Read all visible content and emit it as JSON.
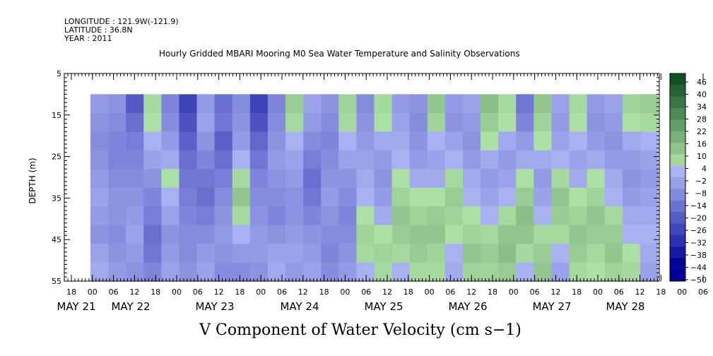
{
  "header": {
    "longitude": "LONGITUDE : 121.9W(-121.9)",
    "latitude": "LATITUDE : 36.8N",
    "year": "YEAR : 2011"
  },
  "chart_data": {
    "type": "heatmap",
    "title": "Hourly Gridded MBARI Mooring M0 Sea Water Temperature and Salinity Observations",
    "xlabel": "V Component of Water Velocity (cm s−1)",
    "ylabel": "DEPTH (m)",
    "y_ticks": [
      "5",
      "15",
      "25",
      "35",
      "45",
      "55"
    ],
    "ylim": [
      5,
      55
    ],
    "y_inverted": true,
    "data_depth_range": [
      10,
      55
    ],
    "x_hour_ticks": [
      "18",
      "00",
      "06",
      "12",
      "18",
      "00",
      "06",
      "12",
      "18",
      "00",
      "06",
      "12",
      "18",
      "00",
      "06",
      "12",
      "18",
      "00",
      "06",
      "12",
      "18",
      "00",
      "06",
      "12",
      "18",
      "00",
      "06",
      "12",
      "18",
      "00",
      "06",
      "12"
    ],
    "x_day_labels": [
      "MAY 21",
      "MAY 22",
      "MAY 23",
      "MAY 24",
      "MAY 25",
      "MAY 26",
      "MAY 27",
      "MAY 28"
    ],
    "colorbar": {
      "min": -50,
      "max": 50,
      "step": 6,
      "labels": [
        "46",
        "40",
        "34",
        "28",
        "22",
        "16",
        "10",
        "4",
        "−2",
        "−8",
        "−14",
        "−20",
        "−26",
        "−32",
        "−38",
        "−44",
        "−50"
      ]
    },
    "columns": [
      {
        "day": "May 21 00h",
        "v": [
          -8,
          -10,
          -12,
          -10,
          -8,
          -6,
          -8,
          -10,
          -6,
          -4
        ]
      },
      {
        "day": "May 21 06h",
        "v": [
          -10,
          -12,
          -14,
          -14,
          -12,
          -10,
          -10,
          -12,
          -10,
          -8
        ]
      },
      {
        "day": "May 21 12h",
        "v": [
          -26,
          -20,
          -16,
          -14,
          -12,
          -10,
          -8,
          -6,
          -8,
          -10
        ]
      },
      {
        "day": "May 21 18h",
        "v": [
          4,
          2,
          -2,
          -6,
          -10,
          -14,
          -16,
          -20,
          -18,
          -14
        ]
      },
      {
        "day": "May 22 00h",
        "v": [
          -14,
          -12,
          -8,
          -4,
          2,
          -2,
          -6,
          -10,
          -8,
          -6
        ]
      },
      {
        "day": "May 22 06h",
        "v": [
          -32,
          -28,
          -24,
          -20,
          -18,
          -16,
          -14,
          -12,
          -12,
          -10
        ]
      },
      {
        "day": "May 22 12h",
        "v": [
          -8,
          -6,
          -10,
          -14,
          -18,
          -20,
          -16,
          -12,
          -8,
          -6
        ]
      },
      {
        "day": "May 22 18h",
        "v": [
          -20,
          -18,
          -24,
          -20,
          -16,
          -12,
          -10,
          -8,
          -10,
          -12
        ]
      },
      {
        "day": "May 23 00h",
        "v": [
          -12,
          -10,
          -8,
          -2,
          4,
          10,
          4,
          -2,
          -8,
          -12
        ]
      },
      {
        "day": "May 23 06h",
        "v": [
          -32,
          -28,
          -22,
          -18,
          -14,
          -12,
          -10,
          -8,
          -8,
          -10
        ]
      },
      {
        "day": "May 23 12h",
        "v": [
          -14,
          -12,
          -10,
          -8,
          -10,
          -12,
          -14,
          -10,
          -6,
          -4
        ]
      },
      {
        "day": "May 23 18h",
        "v": [
          8,
          4,
          -2,
          -6,
          -8,
          -10,
          -10,
          -8,
          -6,
          -8
        ]
      },
      {
        "day": "May 24 00h",
        "v": [
          -6,
          -8,
          -12,
          -16,
          -20,
          -18,
          -14,
          -10,
          -8,
          -6
        ]
      },
      {
        "day": "May 24 06h",
        "v": [
          -10,
          -12,
          -14,
          -12,
          -10,
          -8,
          -10,
          -12,
          -14,
          -12
        ]
      },
      {
        "day": "May 24 12h",
        "v": [
          6,
          4,
          -2,
          -6,
          -10,
          -12,
          -14,
          -12,
          -10,
          -8
        ]
      },
      {
        "day": "May 24 18h",
        "v": [
          -12,
          -10,
          -8,
          -6,
          -4,
          -2,
          2,
          6,
          4,
          -2
        ]
      },
      {
        "day": "May 25 00h",
        "v": [
          4,
          2,
          -4,
          -8,
          -10,
          -8,
          -4,
          2,
          6,
          4
        ]
      },
      {
        "day": "May 25 06h",
        "v": [
          -8,
          -6,
          -4,
          -2,
          2,
          6,
          10,
          8,
          4,
          -2
        ]
      },
      {
        "day": "May 25 12h",
        "v": [
          -10,
          -12,
          -10,
          -8,
          -4,
          2,
          6,
          10,
          8,
          4
        ]
      },
      {
        "day": "May 25 18h",
        "v": [
          10,
          6,
          -2,
          -6,
          -4,
          2,
          8,
          10,
          6,
          4
        ]
      },
      {
        "day": "May 26 00h",
        "v": [
          -8,
          -10,
          -6,
          -2,
          4,
          8,
          6,
          2,
          -2,
          -4
        ]
      },
      {
        "day": "May 26 06h",
        "v": [
          -6,
          -8,
          -10,
          -8,
          -4,
          -2,
          2,
          6,
          10,
          6
        ]
      },
      {
        "day": "May 26 12h",
        "v": [
          12,
          8,
          2,
          -4,
          -8,
          -6,
          -2,
          4,
          8,
          6
        ]
      },
      {
        "day": "May 26 18h",
        "v": [
          4,
          2,
          -4,
          -8,
          -6,
          -2,
          4,
          10,
          12,
          8
        ]
      },
      {
        "day": "May 27 00h",
        "v": [
          -18,
          -14,
          -8,
          -4,
          2,
          8,
          12,
          10,
          4,
          -2
        ]
      },
      {
        "day": "May 27 06h",
        "v": [
          10,
          6,
          2,
          -4,
          -8,
          -6,
          -2,
          4,
          8,
          10
        ]
      },
      {
        "day": "May 27 12h",
        "v": [
          -6,
          -8,
          -6,
          -2,
          4,
          10,
          8,
          4,
          -2,
          -6
        ]
      },
      {
        "day": "May 27 18h",
        "v": [
          4,
          2,
          -2,
          -6,
          -4,
          2,
          6,
          10,
          8,
          4
        ]
      },
      {
        "day": "May 28 00h",
        "v": [
          -8,
          -10,
          -8,
          -4,
          2,
          6,
          10,
          8,
          4,
          2
        ]
      },
      {
        "day": "May 28 06h",
        "v": [
          -6,
          -8,
          -10,
          -8,
          -4,
          -2,
          4,
          8,
          10,
          6
        ]
      },
      {
        "day": "May 28 12h",
        "v": [
          6,
          2,
          -4,
          -8,
          -10,
          -8,
          -4,
          -2,
          2,
          4
        ]
      },
      {
        "day": "May 28 18h",
        "v": [
          8,
          4,
          -2,
          -6,
          -8,
          -6,
          -4,
          -2,
          -4,
          -6
        ]
      }
    ]
  }
}
